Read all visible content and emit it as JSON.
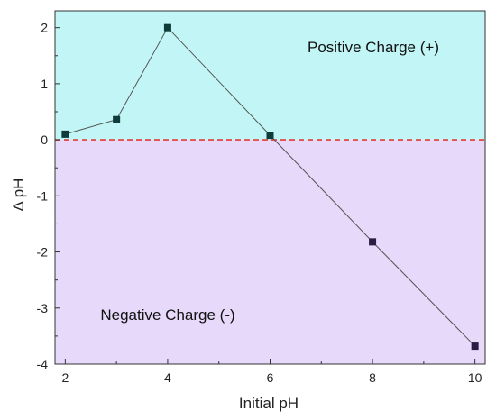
{
  "chart_data": {
    "type": "line",
    "title": "",
    "xlabel": "Initial pH",
    "ylabel": "Δ pH",
    "xlim": [
      1.8,
      10.2
    ],
    "ylim": [
      -4,
      2.3
    ],
    "x_ticks": [
      2,
      4,
      6,
      8,
      10
    ],
    "x_tick_labels": [
      "2",
      "4",
      "6",
      "8",
      "10"
    ],
    "y_ticks": [
      2,
      1,
      0,
      -1,
      -2,
      -3,
      -4
    ],
    "y_tick_labels": [
      "2",
      "1",
      "0",
      "-1",
      "-2",
      "-3",
      "-4"
    ],
    "grid": false,
    "legend": "none",
    "series": [
      {
        "x": [
          2,
          3,
          4,
          6,
          8,
          10
        ],
        "y": [
          0.1,
          0.36,
          2.0,
          0.08,
          -1.82,
          -3.68
        ]
      }
    ],
    "reference_line": {
      "y": 0,
      "style": "dashed",
      "color": "#e53935"
    },
    "regions": [
      {
        "label": "Positive Charge (+)",
        "from": 0,
        "to": 2.3,
        "color": "#c2f5f5"
      },
      {
        "label": "Negative Charge (-)",
        "from": -4,
        "to": 0,
        "color": "#e6d9fa"
      }
    ],
    "colors": {
      "marker_positive": "#0f3b3b",
      "marker_negative": "#2b1c46",
      "line": "#555555",
      "axis": "#333333"
    }
  }
}
